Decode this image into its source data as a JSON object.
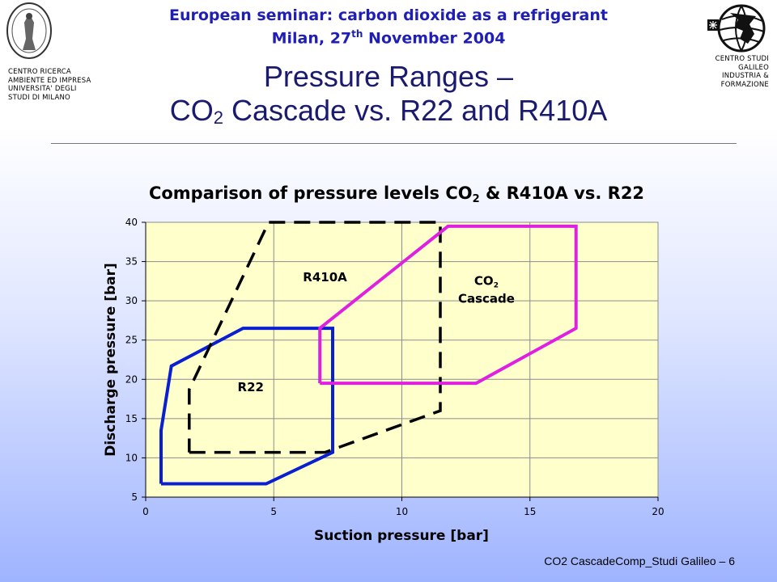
{
  "header": {
    "seminar_line1": "European seminar: carbon dioxide as a refrigerant",
    "seminar_line2_pre": "Milan, 27",
    "seminar_line2_sup": "th",
    "seminar_line2_post": " November 2004",
    "left_logo_caption": [
      "CENTRO RICERCA",
      "AMBIENTE ED IMPRESA",
      "UNIVERSITA' DEGLI",
      "STUDI DI MILANO"
    ],
    "right_logo_caption": [
      "CENTRO STUDI",
      "GALILEO",
      "INDUSTRIA &",
      "FORMAZIONE"
    ]
  },
  "slide": {
    "title_line1": "Pressure Ranges –",
    "title_line2_pre": "CO",
    "title_line2_sub": "2",
    "title_line2_post": " Cascade vs. R22 and R410A"
  },
  "footer": {
    "text": "CO2 CascadeComp_Studi Galileo – 6"
  },
  "chart_data": {
    "type": "area",
    "title_pre": "Comparison of pressure levels CO",
    "title_sub": "2",
    "title_post": " & R410A vs. R22",
    "xlabel": "Suction pressure [bar]",
    "ylabel": "Discharge pressure [bar]",
    "xlim": [
      0,
      20
    ],
    "ylim": [
      5,
      40
    ],
    "xticks": [
      0,
      5,
      10,
      15,
      20
    ],
    "yticks": [
      5,
      10,
      15,
      20,
      25,
      30,
      35,
      40
    ],
    "grid": true,
    "plot_background": "#ffffcc",
    "series": [
      {
        "name": "R22",
        "color": "#0a1fd0",
        "style": "solid",
        "label_pos": [
          4.1,
          18.5
        ],
        "points": [
          [
            0.6,
            6.7
          ],
          [
            4.7,
            6.7
          ],
          [
            7.3,
            10.7
          ],
          [
            7.3,
            26.5
          ],
          [
            3.8,
            26.5
          ],
          [
            1.0,
            21.7
          ],
          [
            0.6,
            13.5
          ],
          [
            0.6,
            6.7
          ]
        ]
      },
      {
        "name": "R410A",
        "color": "#000000",
        "style": "dashed",
        "label_pos": [
          7.0,
          32.5
        ],
        "points": [
          [
            1.7,
            10.7
          ],
          [
            7.0,
            10.7
          ],
          [
            11.5,
            16.0
          ],
          [
            11.5,
            40.0
          ],
          [
            4.8,
            40.0
          ],
          [
            1.7,
            18.7
          ],
          [
            1.7,
            10.7
          ]
        ]
      },
      {
        "name": "CO2 Cascade",
        "label_line1_pre": "CO",
        "label_line1_sub": "2",
        "label_line2": "Cascade",
        "color": "#e020e0",
        "style": "solid",
        "label_pos": [
          13.3,
          32.0
        ],
        "points": [
          [
            6.8,
            19.5
          ],
          [
            12.9,
            19.5
          ],
          [
            16.8,
            26.5
          ],
          [
            16.8,
            39.5
          ],
          [
            11.8,
            39.5
          ],
          [
            6.8,
            26.5
          ],
          [
            6.8,
            19.5
          ]
        ]
      }
    ]
  }
}
